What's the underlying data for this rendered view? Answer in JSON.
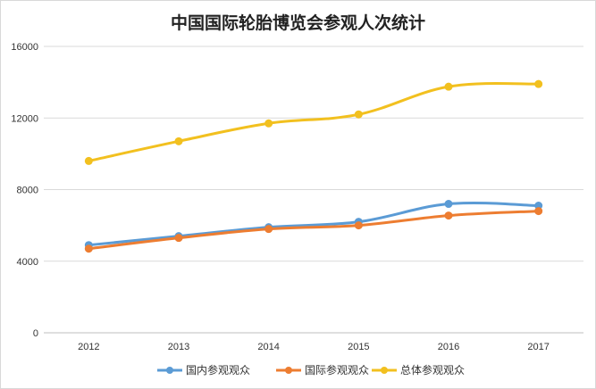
{
  "chart_data": {
    "type": "line",
    "title": "中国国际轮胎博览会参观人次统计",
    "xlabel": "",
    "ylabel": "",
    "categories": [
      "2012",
      "2013",
      "2014",
      "2015",
      "2016",
      "2017"
    ],
    "ylim": [
      0,
      16000
    ],
    "yticks": [
      "0",
      "4000",
      "8000",
      "12000",
      "16000"
    ],
    "grid": true,
    "legend_position": "bottom",
    "series": [
      {
        "name": "国内参观观众",
        "color": "#5b9bd5",
        "values": [
          4900,
          5400,
          5900,
          6200,
          7200,
          7100
        ]
      },
      {
        "name": "国际参观观众",
        "color": "#ed7d31",
        "values": [
          4700,
          5300,
          5800,
          6000,
          6550,
          6800
        ]
      },
      {
        "name": "总体参观观众",
        "color": "#f2c01f",
        "values": [
          9600,
          10700,
          11700,
          12200,
          13750,
          13900
        ]
      }
    ]
  }
}
